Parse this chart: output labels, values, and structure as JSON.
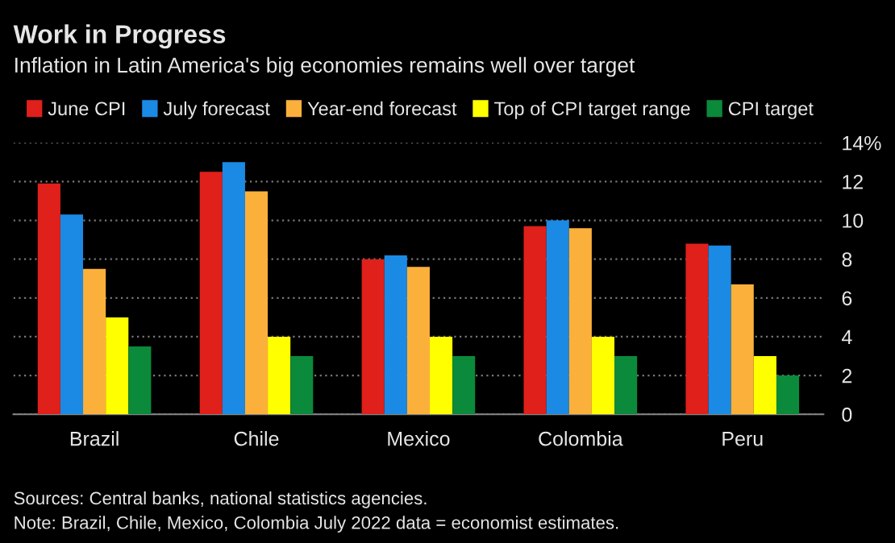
{
  "chart_data": {
    "type": "bar",
    "title": "Work in Progress",
    "subtitle": "Inflation in Latin America's big economies remains well over target",
    "categories": [
      "Brazil",
      "Chile",
      "Mexico",
      "Colombia",
      "Peru"
    ],
    "series": [
      {
        "name": "June CPI",
        "color": "#e0201b",
        "values": [
          11.9,
          12.5,
          8.0,
          9.7,
          8.8
        ]
      },
      {
        "name": "July forecast",
        "color": "#1a8ae5",
        "values": [
          10.3,
          13.0,
          8.2,
          10.0,
          8.7
        ]
      },
      {
        "name": "Year-end forecast",
        "color": "#fbb03b",
        "values": [
          7.5,
          11.5,
          7.6,
          9.6,
          6.7
        ]
      },
      {
        "name": "Top of CPI target range",
        "color": "#ffff00",
        "values": [
          5.0,
          4.0,
          4.0,
          4.0,
          3.0
        ]
      },
      {
        "name": "CPI target",
        "color": "#0a8a3a",
        "values": [
          3.5,
          3.0,
          3.0,
          3.0,
          2.0
        ]
      }
    ],
    "ylim": [
      0,
      14
    ],
    "yticks": [
      0,
      2,
      4,
      6,
      8,
      10,
      12,
      {
        "value": 14,
        "label": "14%"
      }
    ],
    "grid": "y",
    "legend": "top",
    "annotations": [
      "Sources: Central banks, national statistics agencies.",
      "Note: Brazil, Chile, Mexico, Colombia July 2022 data = economist estimates."
    ]
  }
}
